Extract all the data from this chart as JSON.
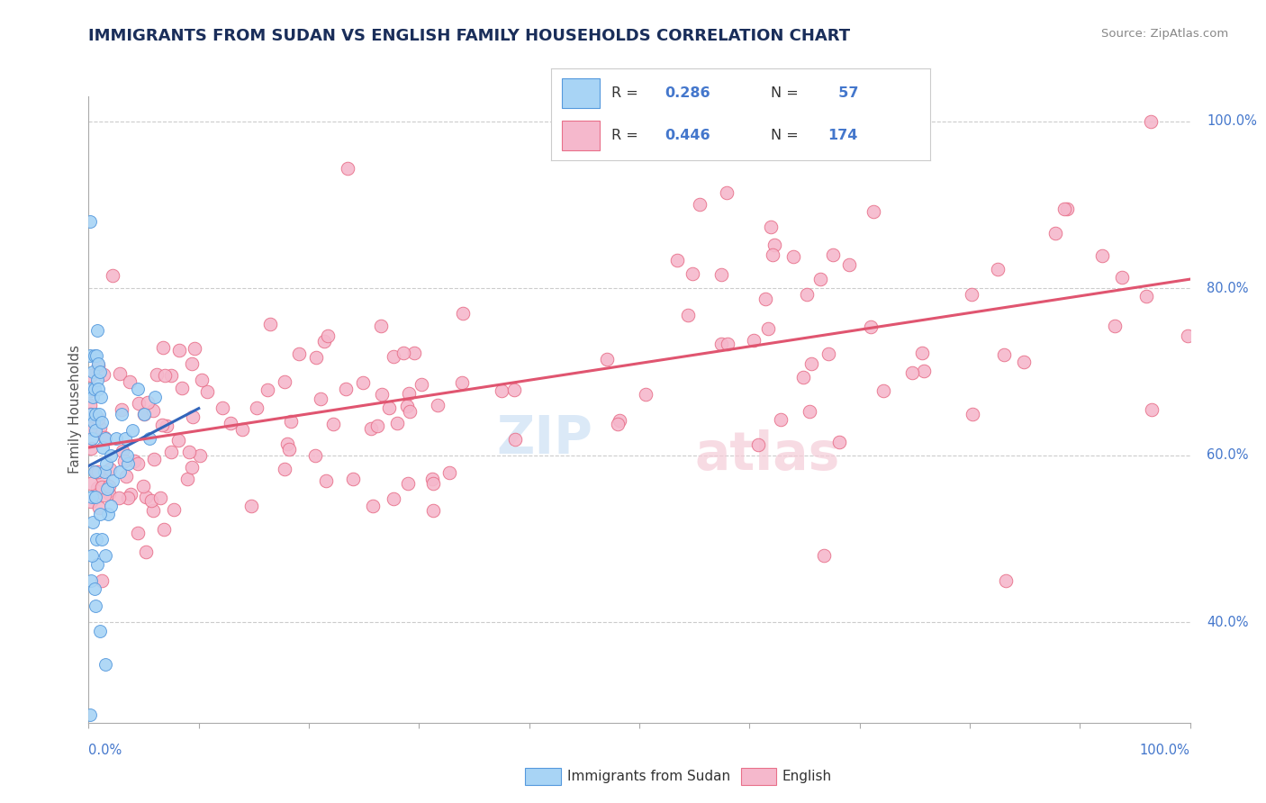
{
  "title": "IMMIGRANTS FROM SUDAN VS ENGLISH FAMILY HOUSEHOLDS CORRELATION CHART",
  "source_text": "Source: ZipAtlas.com",
  "ylabel": "Family Households",
  "legend_label_blue": "Immigrants from Sudan",
  "legend_label_pink": "English",
  "r_blue": 0.286,
  "n_blue": 57,
  "r_pink": 0.446,
  "n_pink": 174,
  "blue_fill": "#a8d4f5",
  "pink_fill": "#f5b8cc",
  "blue_edge": "#5599dd",
  "pink_edge": "#e8708a",
  "trend_blue": "#3366bb",
  "trend_pink": "#e05570",
  "title_color": "#1a2e5a",
  "axis_label_color": "#4477cc",
  "ylabel_color": "#555555",
  "grid_color": "#cccccc",
  "watermark_zip_color": "#cce0f5",
  "watermark_atlas_color": "#f5ccd8",
  "legend_border_color": "#cccccc",
  "source_color": "#888888",
  "bottom_label_color": "#333333",
  "xmin": 0,
  "xmax": 100,
  "ymin": 28,
  "ymax": 103,
  "right_yticks": [
    40,
    60,
    80,
    100
  ],
  "right_yticklabels": [
    "40.0%",
    "60.0%",
    "80.0%",
    "100.0%"
  ]
}
